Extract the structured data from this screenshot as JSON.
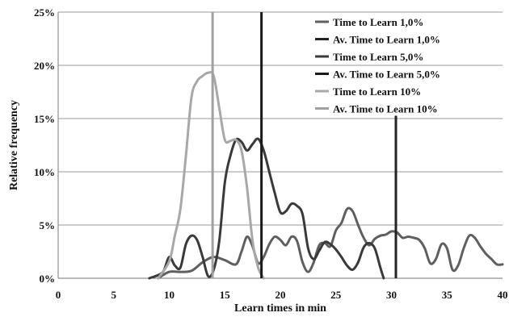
{
  "chart_data": {
    "type": "line",
    "xlabel": "Learn times in min",
    "ylabel": "Relative frequency",
    "xlim": [
      0,
      40
    ],
    "ylim": [
      0,
      25
    ],
    "x_ticks": [
      "0",
      "5",
      "10",
      "15",
      "20",
      "25",
      "30",
      "35",
      "40"
    ],
    "y_ticks": [
      "0%",
      "5%",
      "10%",
      "15%",
      "20%",
      "25%"
    ],
    "grid": "horizontal",
    "legend_position": "top-right",
    "series": [
      {
        "name": "Time to Learn 1,0%",
        "kind": "curve",
        "color": "#5f5f5f",
        "points": [
          [
            9.0,
            0
          ],
          [
            10.0,
            0.6
          ],
          [
            11.0,
            0.6
          ],
          [
            12.0,
            0.7
          ],
          [
            13.0,
            1.5
          ],
          [
            14.0,
            2.0
          ],
          [
            15.0,
            1.7
          ],
          [
            16.0,
            1.3
          ],
          [
            16.5,
            2.5
          ],
          [
            17.0,
            3.9
          ],
          [
            17.5,
            3.0
          ],
          [
            18.0,
            1.4
          ],
          [
            18.5,
            2.0
          ],
          [
            19.0,
            3.2
          ],
          [
            19.5,
            3.9
          ],
          [
            20.0,
            3.6
          ],
          [
            20.5,
            3.1
          ],
          [
            21.0,
            3.9
          ],
          [
            21.5,
            3.5
          ],
          [
            22.0,
            1.5
          ],
          [
            22.5,
            0.6
          ],
          [
            23.0,
            1.5
          ],
          [
            23.5,
            3.1
          ],
          [
            24.0,
            3.3
          ],
          [
            24.5,
            3.0
          ],
          [
            25.0,
            4.5
          ],
          [
            25.5,
            5.2
          ],
          [
            26.0,
            6.5
          ],
          [
            26.5,
            6.3
          ],
          [
            27.0,
            5.0
          ],
          [
            27.5,
            3.8
          ],
          [
            28.0,
            3.1
          ],
          [
            28.5,
            3.7
          ],
          [
            29.0,
            4.0
          ],
          [
            29.5,
            4.1
          ],
          [
            30.0,
            4.4
          ],
          [
            30.5,
            4.3
          ],
          [
            31.0,
            3.8
          ],
          [
            31.5,
            3.9
          ],
          [
            32.0,
            3.8
          ],
          [
            32.5,
            3.6
          ],
          [
            33.0,
            2.8
          ],
          [
            33.5,
            1.4
          ],
          [
            34.0,
            1.8
          ],
          [
            34.5,
            3.2
          ],
          [
            35.0,
            2.8
          ],
          [
            35.5,
            0.8
          ],
          [
            36.0,
            1.2
          ],
          [
            36.5,
            2.8
          ],
          [
            37.0,
            4.0
          ],
          [
            37.5,
            3.8
          ],
          [
            38.0,
            3.0
          ],
          [
            38.5,
            2.3
          ],
          [
            39.0,
            1.8
          ],
          [
            39.5,
            1.3
          ],
          [
            40.0,
            1.3
          ]
        ]
      },
      {
        "name": "Av. Time to Learn 1,0%",
        "kind": "vline",
        "color": "#222222",
        "x": 30.4,
        "y": 15.5
      },
      {
        "name": "Time to Learn 5,0%",
        "kind": "curve",
        "color": "#3a3a3a",
        "points": [
          [
            8.2,
            0
          ],
          [
            9.0,
            0.3
          ],
          [
            9.5,
            0.7
          ],
          [
            10.0,
            2.0
          ],
          [
            10.5,
            1.2
          ],
          [
            11.0,
            1.0
          ],
          [
            11.5,
            3.2
          ],
          [
            12.0,
            4.0
          ],
          [
            12.5,
            3.6
          ],
          [
            13.0,
            2.0
          ],
          [
            13.5,
            0.2
          ],
          [
            14.0,
            0.8
          ],
          [
            14.5,
            3.5
          ],
          [
            15.0,
            9.0
          ],
          [
            15.5,
            11.5
          ],
          [
            16.0,
            13.0
          ],
          [
            16.5,
            12.8
          ],
          [
            17.0,
            12.0
          ],
          [
            17.5,
            12.6
          ],
          [
            18.0,
            13.1
          ],
          [
            18.5,
            12.0
          ],
          [
            19.0,
            10.0
          ],
          [
            19.5,
            8.0
          ],
          [
            20.0,
            6.2
          ],
          [
            20.5,
            6.3
          ],
          [
            21.0,
            7.0
          ],
          [
            21.5,
            6.8
          ],
          [
            22.0,
            6.0
          ],
          [
            22.5,
            2.8
          ],
          [
            23.0,
            1.8
          ],
          [
            23.5,
            2.6
          ],
          [
            24.0,
            3.4
          ],
          [
            24.5,
            3.2
          ],
          [
            25.0,
            2.7
          ],
          [
            25.5,
            2.0
          ],
          [
            26.0,
            1.2
          ],
          [
            26.5,
            0.8
          ],
          [
            27.0,
            1.5
          ],
          [
            27.5,
            2.9
          ],
          [
            28.0,
            3.3
          ],
          [
            28.5,
            2.8
          ],
          [
            29.0,
            1.0
          ],
          [
            29.3,
            0
          ]
        ]
      },
      {
        "name": "Av. Time to Learn 5,0%",
        "kind": "vline",
        "color": "#1a1a1a",
        "x": 18.3,
        "y": 25
      },
      {
        "name": "Time to Learn 10%",
        "kind": "curve",
        "color": "#a8a8a8",
        "points": [
          [
            9.0,
            0
          ],
          [
            10.0,
            1.6
          ],
          [
            10.5,
            4.0
          ],
          [
            11.0,
            6.5
          ],
          [
            11.5,
            11.5
          ],
          [
            12.0,
            17.0
          ],
          [
            12.5,
            18.5
          ],
          [
            13.0,
            19.0
          ],
          [
            13.5,
            19.3
          ],
          [
            14.0,
            19.0
          ],
          [
            14.5,
            16.0
          ],
          [
            15.0,
            13.0
          ],
          [
            15.5,
            12.9
          ],
          [
            16.0,
            13.0
          ],
          [
            16.5,
            12.0
          ],
          [
            17.0,
            8.5
          ],
          [
            17.5,
            3.5
          ],
          [
            18.0,
            1.0
          ],
          [
            18.5,
            0
          ]
        ]
      },
      {
        "name": "Av. Time to Learn 10%",
        "kind": "vline",
        "color": "#a0a0a0",
        "x": 13.9,
        "y": 25
      }
    ]
  }
}
